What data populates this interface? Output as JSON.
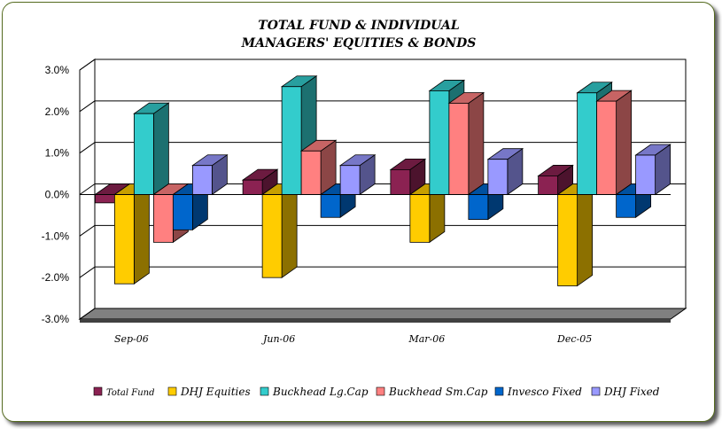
{
  "chart_data": {
    "type": "bar",
    "title_lines": [
      "TOTAL FUND  & INDIVIDUAL",
      "MANAGERS' EQUITIES & BONDS"
    ],
    "categories": [
      "Sep-06",
      "Jun-06",
      "Mar-06",
      "Dec-05"
    ],
    "ylim": [
      -3.0,
      3.0
    ],
    "yticks": [
      3.0,
      2.0,
      1.0,
      0.0,
      -1.0,
      -2.0,
      -3.0
    ],
    "ytick_labels": [
      "3.0%",
      "2.0%",
      "1.0%",
      "0.0%",
      "-1.0%",
      "-2.0%",
      "-3.0%"
    ],
    "grid": true,
    "legend_position": "bottom",
    "series": [
      {
        "name": "Total Fund",
        "color": "#8B2252",
        "values": [
          -0.2,
          0.35,
          0.6,
          0.45
        ]
      },
      {
        "name": "DHJ Equities",
        "color": "#FFCC00",
        "values": [
          -2.15,
          -2.0,
          -1.15,
          -2.2
        ]
      },
      {
        "name": "Buckhead Lg.Cap",
        "color": "#33CCCC",
        "values": [
          1.95,
          2.6,
          2.5,
          2.45
        ]
      },
      {
        "name": "Buckhead Sm.Cap",
        "color": "#FF8080",
        "values": [
          -1.15,
          1.05,
          2.2,
          2.25
        ]
      },
      {
        "name": "Invesco Fixed",
        "color": "#0066CC",
        "values": [
          -0.85,
          -0.55,
          -0.6,
          -0.55
        ]
      },
      {
        "name": "DHJ Fixed",
        "color": "#9999FF",
        "values": [
          0.7,
          0.7,
          0.85,
          0.95
        ]
      }
    ]
  }
}
